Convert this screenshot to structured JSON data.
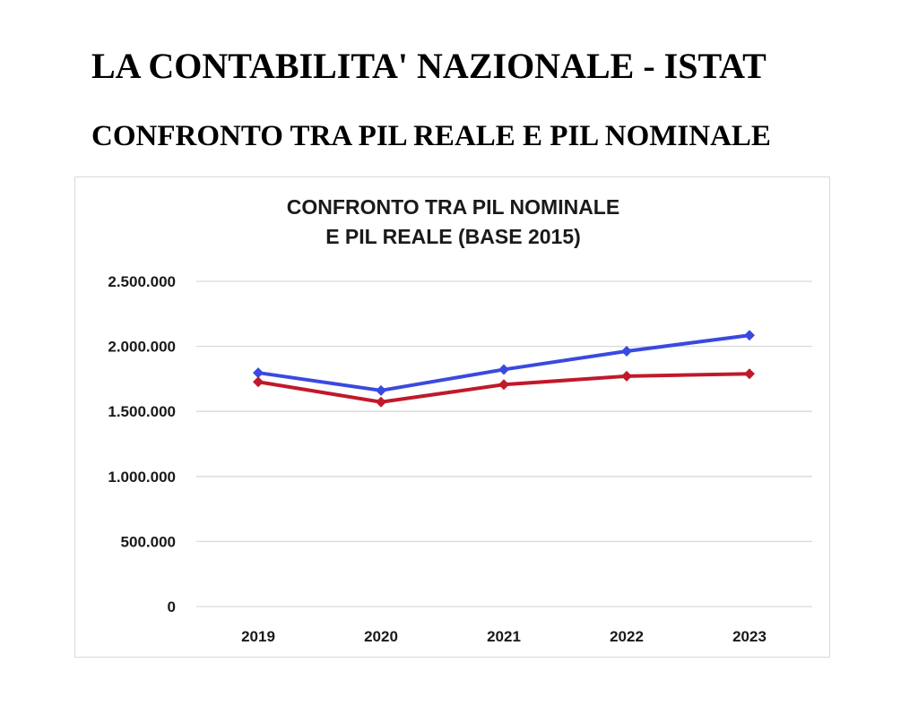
{
  "header": {
    "title": "LA CONTABILITA' NAZIONALE - ISTAT",
    "subtitle": "CONFRONTO TRA PIL REALE E PIL NOMINALE"
  },
  "chart_data": {
    "type": "line",
    "title_lines": [
      "CONFRONTO TRA PIL NOMINALE",
      "E PIL REALE (BASE 2015)"
    ],
    "categories": [
      "2019",
      "2020",
      "2021",
      "2022",
      "2023"
    ],
    "series": [
      {
        "values": [
          1797000,
          1661000,
          1822000,
          1963000,
          2085000
        ],
        "color": "#3a49e0",
        "marker": "diamond"
      },
      {
        "values": [
          1727000,
          1572000,
          1706000,
          1771000,
          1789000
        ],
        "color": "#c0192b",
        "marker": "diamond"
      }
    ],
    "ylim": [
      0,
      2500000
    ],
    "y_ticks": [
      0,
      500000,
      1000000,
      1500000,
      2000000,
      2500000
    ],
    "y_tick_labels": [
      "0",
      "500.000",
      "1.000.000",
      "1.500.000",
      "2.000.000",
      "2.500.000"
    ],
    "xlabel": "",
    "ylabel": "",
    "grid": true,
    "legend": "none"
  }
}
